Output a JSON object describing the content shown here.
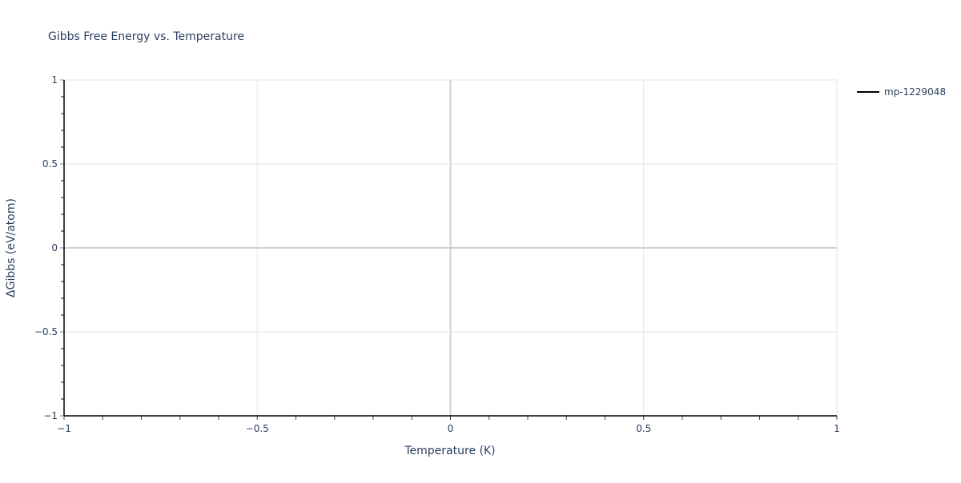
{
  "chart_data": {
    "type": "line",
    "title": "Gibbs Free Energy vs. Temperature",
    "xlabel": "Temperature (K)",
    "ylabel": "ΔGibbs (eV/atom)",
    "xlim": [
      -1,
      1
    ],
    "ylim": [
      -1,
      1
    ],
    "x_ticks": [
      -1,
      -0.5,
      0,
      0.5,
      1
    ],
    "x_tick_labels": [
      "−1",
      "−0.5",
      "0",
      "0.5",
      "1"
    ],
    "y_ticks": [
      -1,
      -0.5,
      0,
      0.5,
      1
    ],
    "y_tick_labels": [
      "−1",
      "−0.5",
      "0",
      "0.5",
      "1"
    ],
    "grid": true,
    "legend_position": "top-right",
    "series": [
      {
        "name": "mp-1229048",
        "color": "#000000",
        "x": [],
        "y": []
      }
    ]
  }
}
